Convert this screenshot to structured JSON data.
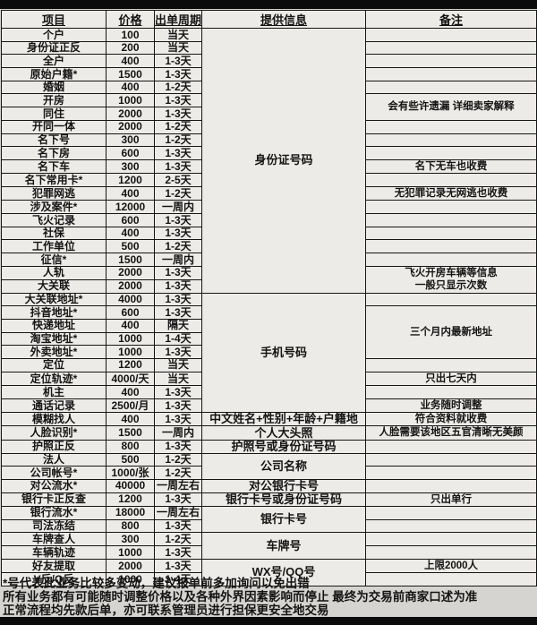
{
  "table": {
    "headers": {
      "item": "项目",
      "price": "价格",
      "cycle": "出单周期",
      "info": "提供信息",
      "note": "备注"
    },
    "rows": [
      {
        "item": "个户",
        "price": "100",
        "cycle": "当天"
      },
      {
        "item": "身份证正反",
        "price": "200",
        "cycle": "当天"
      },
      {
        "item": "全户",
        "price": "400",
        "cycle": "1-3天"
      },
      {
        "item": "原始户籍*",
        "price": "1500",
        "cycle": "1-3天"
      },
      {
        "item": "婚姻",
        "price": "400",
        "cycle": "1-2天"
      },
      {
        "item": "开房",
        "price": "1000",
        "cycle": "1-3天"
      },
      {
        "item": "同住",
        "price": "2000",
        "cycle": "1-3天"
      },
      {
        "item": "开同一体",
        "price": "2000",
        "cycle": "1-2天"
      },
      {
        "item": "名下号",
        "price": "300",
        "cycle": "1-2天"
      },
      {
        "item": "名下房",
        "price": "600",
        "cycle": "1-3天"
      },
      {
        "item": "名下车",
        "price": "300",
        "cycle": "1-3天"
      },
      {
        "item": "名下常用卡*",
        "price": "1200",
        "cycle": "2-5天"
      },
      {
        "item": "犯罪网逃",
        "price": "400",
        "cycle": "1-2天"
      },
      {
        "item": "涉及案件*",
        "price": "12000",
        "cycle": "一周内"
      },
      {
        "item": "飞火记录",
        "price": "600",
        "cycle": "1-3天"
      },
      {
        "item": "社保",
        "price": "400",
        "cycle": "1-3天"
      },
      {
        "item": "工作单位",
        "price": "500",
        "cycle": "1-2天"
      },
      {
        "item": "征信*",
        "price": "1500",
        "cycle": "一周内"
      },
      {
        "item": "人轨",
        "price": "2000",
        "cycle": "1-3天"
      },
      {
        "item": "大关联",
        "price": "2000",
        "cycle": "1-3天"
      },
      {
        "item": "大关联地址*",
        "price": "4000",
        "cycle": "1-3天"
      },
      {
        "item": "抖音地址*",
        "price": "600",
        "cycle": "1-3天"
      },
      {
        "item": "快递地址",
        "price": "400",
        "cycle": "隔天"
      },
      {
        "item": "淘宝地址*",
        "price": "1000",
        "cycle": "1-4天"
      },
      {
        "item": "外卖地址*",
        "price": "1000",
        "cycle": "1-3天"
      },
      {
        "item": "定位",
        "price": "1200",
        "cycle": "当天"
      },
      {
        "item": "定位轨迹*",
        "price": "4000/天",
        "cycle": "当天"
      },
      {
        "item": "机主",
        "price": "400",
        "cycle": "1-3天"
      },
      {
        "item": "通话记录",
        "price": "2500/月",
        "cycle": "1-3天"
      },
      {
        "item": "模糊找人",
        "price": "400",
        "cycle": "1-3天"
      },
      {
        "item": "人脸识别*",
        "price": "1500",
        "cycle": "一周内"
      },
      {
        "item": "护照正反",
        "price": "800",
        "cycle": "1-3天"
      },
      {
        "item": "法人",
        "price": "500",
        "cycle": "1-2天"
      },
      {
        "item": "公司帐号*",
        "price": "1000/张",
        "cycle": "1-2天"
      },
      {
        "item": "对公流水*",
        "price": "40000",
        "cycle": "一周左右"
      },
      {
        "item": "银行卡正反查",
        "price": "1200",
        "cycle": "1-3天"
      },
      {
        "item": "银行流水*",
        "price": "18000",
        "cycle": "一周左右"
      },
      {
        "item": "司法冻结",
        "price": "800",
        "cycle": "1-3天"
      },
      {
        "item": "车牌查人",
        "price": "300",
        "cycle": "1-2天"
      },
      {
        "item": "车辆轨迹",
        "price": "1000",
        "cycle": "1-3天"
      },
      {
        "item": "好友提取",
        "price": "2000",
        "cycle": "1-3天"
      },
      {
        "item": "V反/Q反",
        "price": "1000",
        "cycle": "1-4天"
      }
    ],
    "info_cells": [
      {
        "row": 0,
        "span": 20,
        "text": "身份证号码"
      },
      {
        "row": 20,
        "span": 9,
        "text": "手机号码"
      },
      {
        "row": 29,
        "span": 1,
        "text": "中文姓名+性别+年龄+户籍地"
      },
      {
        "row": 30,
        "span": 1,
        "text": "个人大头照"
      },
      {
        "row": 31,
        "span": 1,
        "text": "护照号或身份证号码"
      },
      {
        "row": 32,
        "span": 2,
        "text": "公司名称"
      },
      {
        "row": 34,
        "span": 1,
        "text": "对公银行卡号"
      },
      {
        "row": 35,
        "span": 1,
        "text": "银行卡号或身份证号码"
      },
      {
        "row": 36,
        "span": 2,
        "text": "银行卡号"
      },
      {
        "row": 38,
        "span": 2,
        "text": "车牌号"
      },
      {
        "row": 40,
        "span": 2,
        "text": "WX号/QQ号"
      }
    ],
    "note_cells": [
      {
        "row": 0,
        "span": 1,
        "text": ""
      },
      {
        "row": 1,
        "span": 1,
        "text": ""
      },
      {
        "row": 2,
        "span": 1,
        "text": ""
      },
      {
        "row": 3,
        "span": 1,
        "text": ""
      },
      {
        "row": 4,
        "span": 1,
        "text": ""
      },
      {
        "row": 5,
        "span": 2,
        "text": "会有些许遗漏 详细卖家解释"
      },
      {
        "row": 7,
        "span": 1,
        "text": ""
      },
      {
        "row": 8,
        "span": 1,
        "text": ""
      },
      {
        "row": 9,
        "span": 1,
        "text": ""
      },
      {
        "row": 10,
        "span": 1,
        "text": "名下无车也收费"
      },
      {
        "row": 11,
        "span": 1,
        "text": ""
      },
      {
        "row": 12,
        "span": 1,
        "text": "无犯罪记录无网逃也收费"
      },
      {
        "row": 13,
        "span": 1,
        "text": ""
      },
      {
        "row": 14,
        "span": 1,
        "text": ""
      },
      {
        "row": 15,
        "span": 1,
        "text": ""
      },
      {
        "row": 16,
        "span": 1,
        "text": ""
      },
      {
        "row": 17,
        "span": 1,
        "text": ""
      },
      {
        "row": 18,
        "span": 2,
        "text": "飞火开房车辆等信息\n一般只显示次数"
      },
      {
        "row": 20,
        "span": 1,
        "text": ""
      },
      {
        "row": 21,
        "span": 4,
        "text": "三个月内最新地址"
      },
      {
        "row": 25,
        "span": 1,
        "text": ""
      },
      {
        "row": 26,
        "span": 1,
        "text": "只出七天内"
      },
      {
        "row": 27,
        "span": 1,
        "text": ""
      },
      {
        "row": 28,
        "span": 1,
        "text": "业务随时调整"
      },
      {
        "row": 29,
        "span": 1,
        "text": "符合资料就收费"
      },
      {
        "row": 30,
        "span": 1,
        "text": "人脸需要该地区五官清晰无美颜"
      },
      {
        "row": 31,
        "span": 1,
        "text": ""
      },
      {
        "row": 32,
        "span": 1,
        "text": ""
      },
      {
        "row": 33,
        "span": 1,
        "text": ""
      },
      {
        "row": 34,
        "span": 1,
        "text": ""
      },
      {
        "row": 35,
        "span": 1,
        "text": "只出单行"
      },
      {
        "row": 36,
        "span": 1,
        "text": ""
      },
      {
        "row": 37,
        "span": 1,
        "text": ""
      },
      {
        "row": 38,
        "span": 1,
        "text": ""
      },
      {
        "row": 39,
        "span": 1,
        "text": ""
      },
      {
        "row": 40,
        "span": 1,
        "text": "上限2000人"
      },
      {
        "row": 41,
        "span": 1,
        "text": ""
      }
    ]
  },
  "footer": {
    "lines": [
      "*号代表此业务比较多变动，建议报单前多加询问以免出错",
      "所有业务都有可能随时调整价格以及各种外界因素影响而停止 最终为交易前商家口述为准",
      "正常流程均先款后单，亦可联系管理员进行担保更安全地交易"
    ]
  }
}
